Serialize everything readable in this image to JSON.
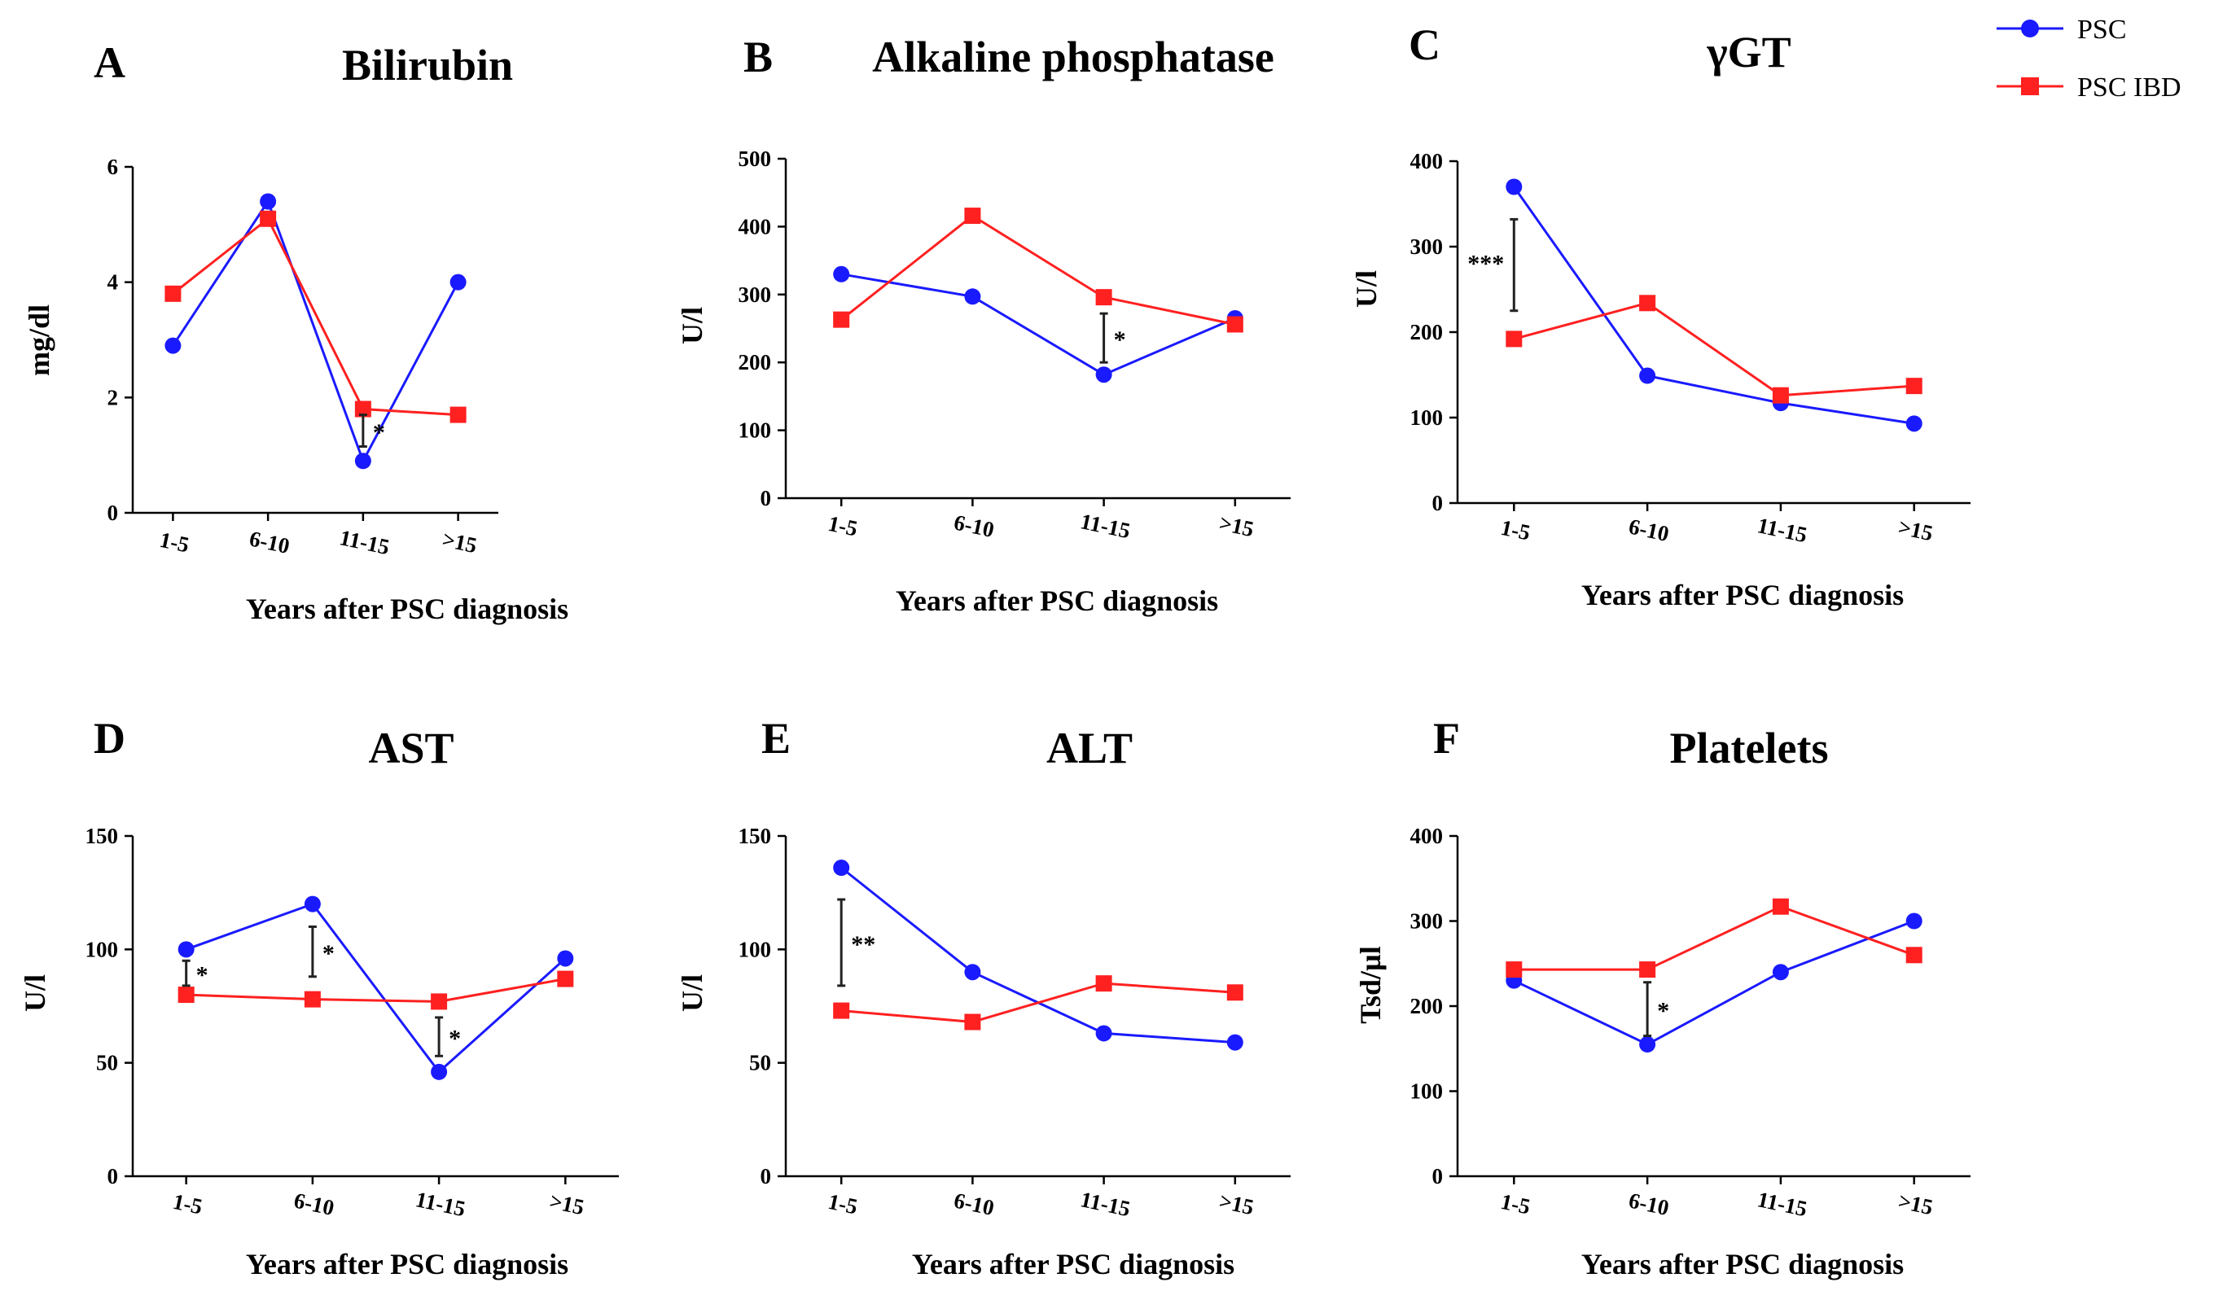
{
  "legend": [
    {
      "name": "PSC",
      "color": "#1a1aff",
      "marker": "circle"
    },
    {
      "name": "PSC IBD",
      "color": "#ff2020",
      "marker": "square"
    }
  ],
  "chart_data": [
    {
      "type": "line",
      "panel": "A",
      "title": "Bilirubin",
      "xlabel": "Years after PSC diagnosis",
      "ylabel": "mg/dl",
      "categories": [
        "1-5",
        "6-10",
        "11-15",
        ">15"
      ],
      "ylim": [
        0,
        6
      ],
      "yticks": [
        0,
        2,
        4,
        6
      ],
      "yticklabels": [
        "0",
        "2",
        "4",
        "6"
      ],
      "series": [
        {
          "name": "PSC",
          "values": [
            2.9,
            5.4,
            0.9,
            4.0
          ]
        },
        {
          "name": "PSC IBD",
          "values": [
            3.8,
            5.1,
            1.8,
            1.7
          ]
        }
      ],
      "significance": [
        {
          "category": "11-15",
          "label": "*",
          "low": 1.15,
          "high": 1.7
        }
      ]
    },
    {
      "type": "line",
      "panel": "B",
      "title": "Alkaline phosphatase",
      "xlabel": "Years after PSC diagnosis",
      "ylabel": "U/l",
      "categories": [
        "1-5",
        "6-10",
        "11-15",
        ">15"
      ],
      "ylim": [
        0,
        500
      ],
      "yticks": [
        0,
        100,
        200,
        300,
        400,
        500
      ],
      "yticklabels": [
        "0",
        "100",
        "200",
        "300",
        "400",
        "500"
      ],
      "series": [
        {
          "name": "PSC",
          "values": [
            330,
            297,
            182,
            265
          ]
        },
        {
          "name": "PSC IBD",
          "values": [
            263,
            416,
            296,
            256
          ]
        }
      ],
      "significance": [
        {
          "category": "11-15",
          "label": "*",
          "low": 200,
          "high": 272
        }
      ]
    },
    {
      "type": "line",
      "panel": "C",
      "title": "γGT",
      "xlabel": "Years after PSC diagnosis",
      "ylabel": "U/l",
      "categories": [
        "1-5",
        "6-10",
        "11-15",
        ">15"
      ],
      "ylim": [
        0,
        400
      ],
      "yticks": [
        0,
        100,
        200,
        300,
        400
      ],
      "yticklabels": [
        "0",
        "100",
        "200",
        "300",
        "400"
      ],
      "series": [
        {
          "name": "PSC",
          "values": [
            370,
            149,
            117,
            93
          ]
        },
        {
          "name": "PSC IBD",
          "values": [
            192,
            234,
            126,
            137
          ]
        }
      ],
      "significance": [
        {
          "category": "1-5",
          "label": "***",
          "low": 225,
          "high": 332
        }
      ]
    },
    {
      "type": "line",
      "panel": "D",
      "title": "AST",
      "xlabel": "Years after PSC diagnosis",
      "ylabel": "U/l",
      "categories": [
        "1-5",
        "6-10",
        "11-15",
        ">15"
      ],
      "ylim": [
        0,
        150
      ],
      "yticks": [
        0,
        50,
        100,
        150
      ],
      "yticklabels": [
        "0",
        "50",
        "100",
        "150"
      ],
      "series": [
        {
          "name": "PSC",
          "values": [
            100,
            120,
            46,
            96
          ]
        },
        {
          "name": "PSC IBD",
          "values": [
            80,
            78,
            77,
            87
          ]
        }
      ],
      "significance": [
        {
          "category": "1-5",
          "label": "*",
          "low": 84,
          "high": 95
        },
        {
          "category": "6-10",
          "label": "*",
          "low": 88,
          "high": 110
        },
        {
          "category": "11-15",
          "label": "*",
          "low": 53,
          "high": 70
        }
      ]
    },
    {
      "type": "line",
      "panel": "E",
      "title": "ALT",
      "xlabel": "Years after PSC diagnosis",
      "ylabel": "U/l",
      "categories": [
        "1-5",
        "6-10",
        "11-15",
        ">15"
      ],
      "ylim": [
        0,
        150
      ],
      "yticks": [
        0,
        50,
        100,
        150
      ],
      "yticklabels": [
        "0",
        "50",
        "100",
        "150"
      ],
      "series": [
        {
          "name": "PSC",
          "values": [
            136,
            90,
            63,
            59
          ]
        },
        {
          "name": "PSC IBD",
          "values": [
            73,
            68,
            85,
            81
          ]
        }
      ],
      "significance": [
        {
          "category": "1-5",
          "label": "**",
          "low": 84,
          "high": 122
        }
      ]
    },
    {
      "type": "line",
      "panel": "F",
      "title": "Platelets",
      "xlabel": "Years after PSC diagnosis",
      "ylabel": "Tsd/µl",
      "categories": [
        "1-5",
        "6-10",
        "11-15",
        ">15"
      ],
      "ylim": [
        0,
        400
      ],
      "yticks": [
        0,
        100,
        200,
        300,
        400
      ],
      "yticklabels": [
        "0",
        "100",
        "200",
        "300",
        "400"
      ],
      "series": [
        {
          "name": "PSC",
          "values": [
            230,
            155,
            240,
            300
          ]
        },
        {
          "name": "PSC IBD",
          "values": [
            243,
            243,
            317,
            260
          ]
        }
      ],
      "significance": [
        {
          "category": "6-10",
          "label": "*",
          "low": 165,
          "high": 228
        }
      ]
    }
  ]
}
